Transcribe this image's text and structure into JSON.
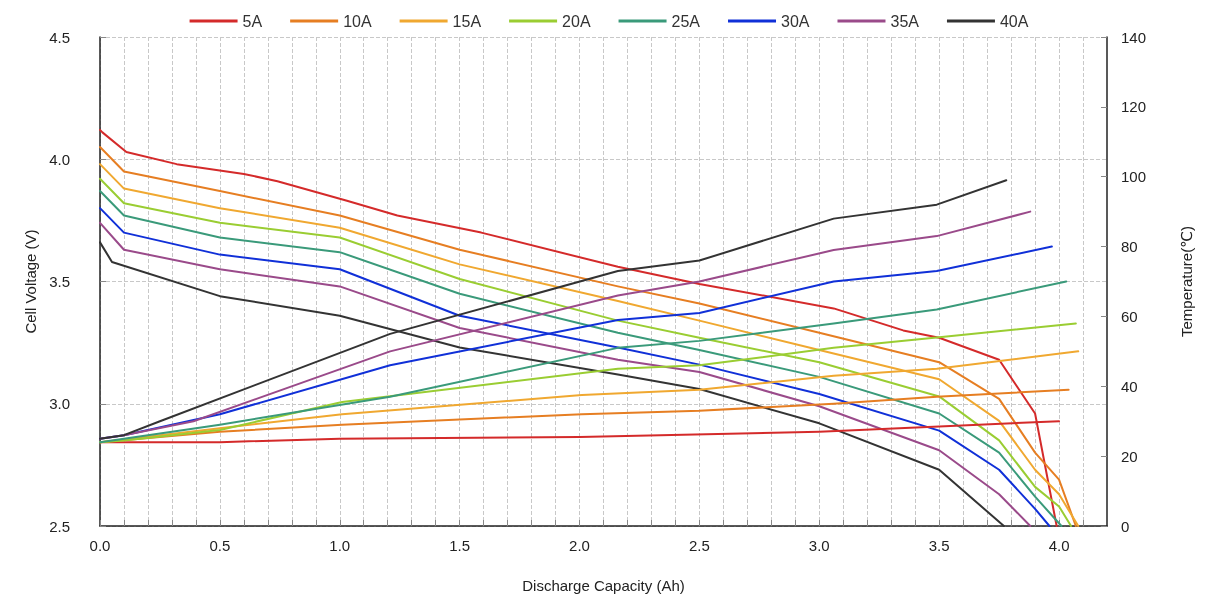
{
  "chart_data": {
    "type": "line",
    "xlabel": "Discharge Capacity (Ah)",
    "ylabel": "Cell Voltage (V)",
    "y2label": "Temperature(℃)",
    "xlim": [
      0,
      4.2
    ],
    "ylim": [
      2.5,
      4.5
    ],
    "y2lim": [
      0,
      140
    ],
    "xticks": [
      {
        "value": 0,
        "label": "0.0"
      },
      {
        "value": 0.1,
        "label": null
      },
      {
        "value": 0.2,
        "label": null
      },
      {
        "value": 0.3,
        "label": null
      },
      {
        "value": 0.4,
        "label": null
      },
      0.5,
      {
        "value": 0.6,
        "label": null
      },
      {
        "value": 0.7,
        "label": null
      },
      {
        "value": 0.8,
        "label": null
      },
      {
        "value": 0.9,
        "label": null
      },
      {
        "value": 1,
        "label": "1.0"
      },
      {
        "value": 1.1,
        "label": null
      },
      {
        "value": 1.2,
        "label": null
      },
      {
        "value": 1.3,
        "label": null
      },
      {
        "value": 1.4,
        "label": null
      },
      1.5,
      {
        "value": 1.6,
        "label": null
      },
      {
        "value": 1.7,
        "label": null
      },
      {
        "value": 1.8,
        "label": null
      },
      {
        "value": 1.9,
        "label": null
      },
      {
        "value": 2,
        "label": "2.0"
      },
      {
        "value": 2.1,
        "label": null
      },
      {
        "value": 2.2,
        "label": null
      },
      {
        "value": 2.3,
        "label": null
      },
      {
        "value": 2.4,
        "label": null
      },
      2.5,
      {
        "value": 2.6,
        "label": null
      },
      {
        "value": 2.7,
        "label": null
      },
      {
        "value": 2.8,
        "label": null
      },
      {
        "value": 2.9,
        "label": null
      },
      {
        "value": 3,
        "label": "3.0"
      },
      {
        "value": 3.1,
        "label": null
      },
      {
        "value": 3.2,
        "label": null
      },
      {
        "value": 3.3,
        "label": null
      },
      {
        "value": 3.4,
        "label": null
      },
      3.5,
      {
        "value": 3.6,
        "label": null
      },
      {
        "value": 3.7,
        "label": null
      },
      {
        "value": 3.8,
        "label": null
      },
      {
        "value": 3.9,
        "label": null
      },
      {
        "value": 4,
        "label": "4.0"
      },
      {
        "value": 4.1,
        "label": null
      }
    ],
    "yticks": [
      2.5,
      {
        "value": 3,
        "label": "3.0"
      },
      3.5,
      {
        "value": 4,
        "label": "4.0"
      },
      4.5
    ],
    "y2ticks": [
      0,
      20,
      40,
      60,
      80,
      100,
      120,
      140
    ],
    "grid": true,
    "legend": "top",
    "marker": "none",
    "line_style": "solid",
    "series": [
      {
        "name": "5A",
        "color": "#d42a2a",
        "x": [
          0,
          0.01,
          0.11,
          0.32,
          0.6,
          0.74,
          1.03,
          1.24,
          1.59,
          2.16,
          2.5,
          3.06,
          3.35,
          3.5,
          3.75,
          3.9,
          3.99
        ],
        "values": [
          4.12,
          4.11,
          4.03,
          3.98,
          3.94,
          3.91,
          3.83,
          3.77,
          3.7,
          3.56,
          3.49,
          3.39,
          3.3,
          3.27,
          3.18,
          2.96,
          2.5
        ]
      },
      {
        "name": "10A",
        "color": "#e67e22",
        "x": [
          0,
          0.1,
          0.5,
          1,
          1.5,
          2.16,
          2.5,
          3,
          3.5,
          3.75,
          3.9,
          4,
          4.07
        ],
        "values": [
          4.05,
          3.95,
          3.87,
          3.77,
          3.63,
          3.48,
          3.41,
          3.29,
          3.17,
          3.02,
          2.8,
          2.69,
          2.5
        ]
      },
      {
        "name": "15A",
        "color": "#f0a830",
        "x": [
          0,
          0.1,
          0.5,
          1,
          1.5,
          2.16,
          2.5,
          3,
          3.5,
          3.75,
          3.9,
          4,
          4.08
        ],
        "values": [
          3.98,
          3.88,
          3.8,
          3.72,
          3.57,
          3.42,
          3.34,
          3.22,
          3.1,
          2.93,
          2.73,
          2.63,
          2.5
        ]
      },
      {
        "name": "20A",
        "color": "#9acd32",
        "x": [
          0,
          0.1,
          0.5,
          1,
          1.5,
          2.16,
          2.5,
          3,
          3.5,
          3.75,
          3.9,
          4,
          4.05
        ],
        "values": [
          3.92,
          3.82,
          3.74,
          3.68,
          3.51,
          3.34,
          3.27,
          3.17,
          3.03,
          2.85,
          2.66,
          2.58,
          2.5
        ]
      },
      {
        "name": "25A",
        "color": "#3a9a7a",
        "x": [
          0,
          0.1,
          0.5,
          1,
          1.5,
          2.16,
          2.5,
          3,
          3.5,
          3.75,
          3.9,
          4.01
        ],
        "values": [
          3.87,
          3.77,
          3.68,
          3.62,
          3.45,
          3.29,
          3.22,
          3.11,
          2.96,
          2.8,
          2.62,
          2.5
        ]
      },
      {
        "name": "30A",
        "color": "#1030d8",
        "x": [
          0,
          0.1,
          0.5,
          1,
          1.5,
          2.16,
          2.5,
          3,
          3.5,
          3.75,
          3.9,
          3.96
        ],
        "values": [
          3.8,
          3.7,
          3.61,
          3.55,
          3.36,
          3.23,
          3.16,
          3.04,
          2.89,
          2.73,
          2.57,
          2.5
        ]
      },
      {
        "name": "35A",
        "color": "#9a4a8a",
        "x": [
          0,
          0.1,
          0.5,
          1,
          1.5,
          2.16,
          2.5,
          3,
          3.5,
          3.75,
          3.88
        ],
        "values": [
          3.74,
          3.63,
          3.55,
          3.48,
          3.31,
          3.18,
          3.13,
          2.99,
          2.81,
          2.63,
          2.5
        ]
      },
      {
        "name": "40A",
        "color": "#333333",
        "x": [
          0,
          0.05,
          0.5,
          1,
          1.5,
          2.16,
          2.5,
          3,
          3.5,
          3.77
        ],
        "values": [
          3.66,
          3.58,
          3.44,
          3.36,
          3.23,
          3.12,
          3.06,
          2.92,
          2.73,
          2.5
        ]
      },
      {
        "color": "#d42a2a",
        "axis": "y2",
        "x": [
          0,
          0.5,
          1,
          2,
          3,
          3.5,
          4
        ],
        "values": [
          24,
          24,
          25,
          25.5,
          27,
          28.5,
          30
        ]
      },
      {
        "color": "#e67e22",
        "axis": "y2",
        "x": [
          0,
          0.5,
          1.01,
          2.01,
          2.5,
          3.06,
          3.49,
          4.04
        ],
        "values": [
          24,
          27,
          29,
          32,
          33,
          35,
          37,
          39
        ]
      },
      {
        "color": "#f0a830",
        "axis": "y2",
        "x": [
          0,
          0.5,
          1.01,
          2.01,
          2.5,
          3.06,
          3.49,
          4.08
        ],
        "values": [
          24,
          28,
          32,
          37.5,
          39,
          43,
          45,
          50
        ]
      },
      {
        "color": "#9acd32",
        "axis": "y2",
        "x": [
          0,
          0.1,
          0.5,
          1.01,
          2.16,
          2.5,
          3.06,
          3.49,
          4.07
        ],
        "values": [
          24,
          24.5,
          27.5,
          35.5,
          45,
          46,
          51,
          54,
          58
        ]
      },
      {
        "color": "#3a9a7a",
        "axis": "y2",
        "x": [
          0,
          0.1,
          0.5,
          1.21,
          2.16,
          2.5,
          3.06,
          3.49,
          4.03
        ],
        "values": [
          24,
          25,
          29,
          37,
          51,
          53,
          58,
          62,
          70
        ]
      },
      {
        "color": "#1030d8",
        "axis": "y2",
        "x": [
          0,
          0.1,
          0.5,
          1.21,
          2.16,
          2.5,
          3.06,
          3.49,
          3.97
        ],
        "values": [
          25,
          26,
          32,
          46,
          59,
          61,
          70,
          73,
          80
        ]
      },
      {
        "color": "#9a4a8a",
        "axis": "y2",
        "x": [
          0,
          0.1,
          0.39,
          1.21,
          2.16,
          2.5,
          3.06,
          3.49,
          3.88
        ],
        "values": [
          25,
          26,
          30,
          50,
          66,
          70,
          79,
          83,
          90
        ]
      },
      {
        "color": "#333333",
        "axis": "y2",
        "x": [
          0,
          0.1,
          0.25,
          1.21,
          2.16,
          2.5,
          3.06,
          3.49,
          3.78
        ],
        "values": [
          25,
          26,
          30,
          55,
          73,
          76,
          88,
          92,
          99
        ]
      }
    ]
  }
}
